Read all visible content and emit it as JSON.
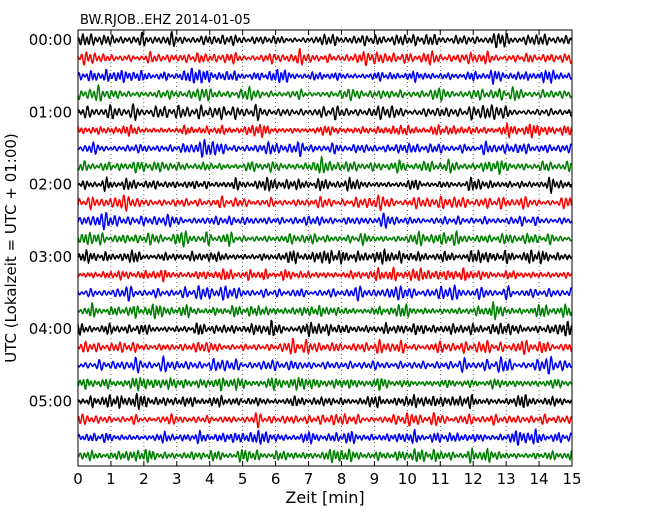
{
  "chart_data": {
    "type": "line",
    "subtype": "dayplot-seismogram",
    "title": "BW.RJOB..EHZ 2014-01-05",
    "xlabel": "Zeit  [min]",
    "ylabel": "UTC (Lokalzeit = UTC + 01:00)",
    "xlim": [
      0,
      15
    ],
    "x_ticks": [
      0,
      1,
      2,
      3,
      4,
      5,
      6,
      7,
      8,
      9,
      10,
      11,
      12,
      13,
      14,
      15
    ],
    "x_tick_labels": [
      "0",
      "1",
      "2",
      "3",
      "4",
      "5",
      "6",
      "7",
      "8",
      "9",
      "10",
      "11",
      "12",
      "13",
      "14",
      "15"
    ],
    "y_tick_labels": [
      "00:00",
      "01:00",
      "02:00",
      "03:00",
      "04:00",
      "05:00"
    ],
    "trace_interval_minutes": 15,
    "trace_count": 24,
    "color_cycle": [
      "#000000",
      "#ff0000",
      "#0000ff",
      "#008000"
    ],
    "grid": "vertical dotted lines at each minute",
    "legend": "none"
  }
}
